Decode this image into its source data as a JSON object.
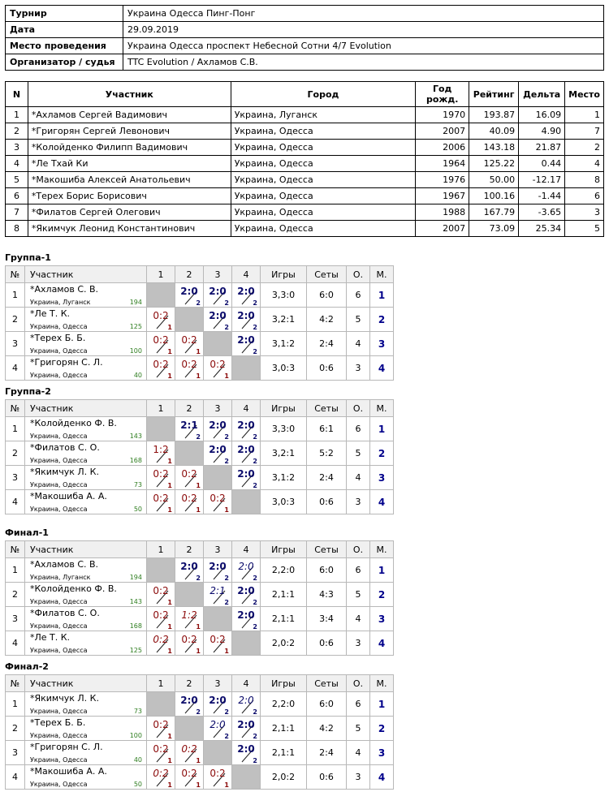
{
  "info": [
    {
      "key": "Турнир",
      "value": "Украина Одесса Пинг-Понг"
    },
    {
      "key": "Дата",
      "value": "29.09.2019"
    },
    {
      "key": "Место проведения",
      "value": "Украина Одесса проспект Небесной Сотни 4/7 Evolution"
    },
    {
      "key": "Организатор / судья",
      "value": "TTC Evolution / Ахламов С.В."
    }
  ],
  "participants": {
    "headers": {
      "n": "N",
      "name": "Участник",
      "city": "Город",
      "year": "Год рожд.",
      "rating": "Рейтинг",
      "delta": "Дельта",
      "place": "Место"
    },
    "rows": [
      {
        "n": "1",
        "name": "*Ахламов Сергей Вадимович",
        "city": "Украина, Луганск",
        "year": "1970",
        "rating": "193.87",
        "delta": "16.09",
        "place": "1"
      },
      {
        "n": "2",
        "name": "*Григорян Сергей Левонович",
        "city": "Украина, Одесса",
        "year": "2007",
        "rating": "40.09",
        "delta": "4.90",
        "place": "7"
      },
      {
        "n": "3",
        "name": "*Колойденко Филипп Вадимович",
        "city": "Украина, Одесса",
        "year": "2006",
        "rating": "143.18",
        "delta": "21.87",
        "place": "2"
      },
      {
        "n": "4",
        "name": "*Ле Тхай Ки",
        "city": "Украина, Одесса",
        "year": "1964",
        "rating": "125.22",
        "delta": "0.44",
        "place": "4"
      },
      {
        "n": "5",
        "name": "*Макошиба Алексей Анатольевич",
        "city": "Украина, Одесса",
        "year": "1976",
        "rating": "50.00",
        "delta": "-12.17",
        "place": "8"
      },
      {
        "n": "6",
        "name": "*Терех Борис Борисович",
        "city": "Украина, Одесса",
        "year": "1967",
        "rating": "100.16",
        "delta": "-1.44",
        "place": "6"
      },
      {
        "n": "7",
        "name": "*Филатов Сергей Олегович",
        "city": "Украина, Одесса",
        "year": "1988",
        "rating": "167.79",
        "delta": "-3.65",
        "place": "3"
      },
      {
        "n": "8",
        "name": "*Якимчук Леонид Константинович",
        "city": "Украина, Одесса",
        "year": "2007",
        "rating": "73.09",
        "delta": "25.34",
        "place": "5"
      }
    ]
  },
  "groupHeaders": {
    "n": "№",
    "player": "Участник",
    "c1": "1",
    "c2": "2",
    "c3": "3",
    "c4": "4",
    "games": "Игры",
    "sets": "Сеты",
    "points": "О.",
    "place": "М."
  },
  "groups": [
    {
      "title": "Группа-1",
      "rows": [
        {
          "n": "1",
          "name": "*Ахламов С. В.",
          "city": "Украина, Луганск",
          "rating": "194",
          "cells": [
            null,
            {
              "s": "2:0",
              "p": "2",
              "w": true,
              "i": false
            },
            {
              "s": "2:0",
              "p": "2",
              "w": true,
              "i": false
            },
            {
              "s": "2:0",
              "p": "2",
              "w": true,
              "i": false
            }
          ],
          "games": "3,3:0",
          "sets": "6:0",
          "points": "6",
          "place": "1"
        },
        {
          "n": "2",
          "name": "*Ле Т. К.",
          "city": "Украина, Одесса",
          "rating": "125",
          "cells": [
            {
              "s": "0:2",
              "p": "1",
              "w": false,
              "i": false
            },
            null,
            {
              "s": "2:0",
              "p": "2",
              "w": true,
              "i": false
            },
            {
              "s": "2:0",
              "p": "2",
              "w": true,
              "i": false
            }
          ],
          "games": "3,2:1",
          "sets": "4:2",
          "points": "5",
          "place": "2"
        },
        {
          "n": "3",
          "name": "*Терех Б. Б.",
          "city": "Украина, Одесса",
          "rating": "100",
          "cells": [
            {
              "s": "0:2",
              "p": "1",
              "w": false,
              "i": false
            },
            {
              "s": "0:2",
              "p": "1",
              "w": false,
              "i": false
            },
            null,
            {
              "s": "2:0",
              "p": "2",
              "w": true,
              "i": false
            }
          ],
          "games": "3,1:2",
          "sets": "2:4",
          "points": "4",
          "place": "3"
        },
        {
          "n": "4",
          "name": "*Григорян С. Л.",
          "city": "Украина, Одесса",
          "rating": "40",
          "cells": [
            {
              "s": "0:2",
              "p": "1",
              "w": false,
              "i": false
            },
            {
              "s": "0:2",
              "p": "1",
              "w": false,
              "i": false
            },
            {
              "s": "0:2",
              "p": "1",
              "w": false,
              "i": false
            },
            null
          ],
          "games": "3,0:3",
          "sets": "0:6",
          "points": "3",
          "place": "4"
        }
      ]
    },
    {
      "title": "Группа-2",
      "rows": [
        {
          "n": "1",
          "name": "*Колойденко Ф. В.",
          "city": "Украина, Одесса",
          "rating": "143",
          "cells": [
            null,
            {
              "s": "2:1",
              "p": "2",
              "w": true,
              "i": false
            },
            {
              "s": "2:0",
              "p": "2",
              "w": true,
              "i": false
            },
            {
              "s": "2:0",
              "p": "2",
              "w": true,
              "i": false
            }
          ],
          "games": "3,3:0",
          "sets": "6:1",
          "points": "6",
          "place": "1"
        },
        {
          "n": "2",
          "name": "*Филатов С. О.",
          "city": "Украина, Одесса",
          "rating": "168",
          "cells": [
            {
              "s": "1:2",
              "p": "1",
              "w": false,
              "i": false
            },
            null,
            {
              "s": "2:0",
              "p": "2",
              "w": true,
              "i": false
            },
            {
              "s": "2:0",
              "p": "2",
              "w": true,
              "i": false
            }
          ],
          "games": "3,2:1",
          "sets": "5:2",
          "points": "5",
          "place": "2"
        },
        {
          "n": "3",
          "name": "*Якимчук Л. К.",
          "city": "Украина, Одесса",
          "rating": "73",
          "cells": [
            {
              "s": "0:2",
              "p": "1",
              "w": false,
              "i": false
            },
            {
              "s": "0:2",
              "p": "1",
              "w": false,
              "i": false
            },
            null,
            {
              "s": "2:0",
              "p": "2",
              "w": true,
              "i": false
            }
          ],
          "games": "3,1:2",
          "sets": "2:4",
          "points": "4",
          "place": "3"
        },
        {
          "n": "4",
          "name": "*Макошиба А. А.",
          "city": "Украина, Одесса",
          "rating": "50",
          "cells": [
            {
              "s": "0:2",
              "p": "1",
              "w": false,
              "i": false
            },
            {
              "s": "0:2",
              "p": "1",
              "w": false,
              "i": false
            },
            {
              "s": "0:2",
              "p": "1",
              "w": false,
              "i": false
            },
            null
          ],
          "games": "3,0:3",
          "sets": "0:6",
          "points": "3",
          "place": "4"
        }
      ]
    },
    {
      "title": "Финал-1",
      "rows": [
        {
          "n": "1",
          "name": "*Ахламов С. В.",
          "city": "Украина, Луганск",
          "rating": "194",
          "cells": [
            null,
            {
              "s": "2:0",
              "p": "2",
              "w": true,
              "i": false
            },
            {
              "s": "2:0",
              "p": "2",
              "w": true,
              "i": false
            },
            {
              "s": "2:0",
              "p": "2",
              "w": true,
              "i": true
            }
          ],
          "games": "2,2:0",
          "sets": "6:0",
          "points": "6",
          "place": "1"
        },
        {
          "n": "2",
          "name": "*Колойденко Ф. В.",
          "city": "Украина, Одесса",
          "rating": "143",
          "cells": [
            {
              "s": "0:2",
              "p": "1",
              "w": false,
              "i": false
            },
            null,
            {
              "s": "2:1",
              "p": "2",
              "w": true,
              "i": true
            },
            {
              "s": "2:0",
              "p": "2",
              "w": true,
              "i": false
            }
          ],
          "games": "2,1:1",
          "sets": "4:3",
          "points": "5",
          "place": "2"
        },
        {
          "n": "3",
          "name": "*Филатов С. О.",
          "city": "Украина, Одесса",
          "rating": "168",
          "cells": [
            {
              "s": "0:2",
              "p": "1",
              "w": false,
              "i": false
            },
            {
              "s": "1:2",
              "p": "1",
              "w": false,
              "i": true
            },
            null,
            {
              "s": "2:0",
              "p": "2",
              "w": true,
              "i": false
            }
          ],
          "games": "2,1:1",
          "sets": "3:4",
          "points": "4",
          "place": "3"
        },
        {
          "n": "4",
          "name": "*Ле Т. К.",
          "city": "Украина, Одесса",
          "rating": "125",
          "cells": [
            {
              "s": "0:2",
              "p": "1",
              "w": false,
              "i": true
            },
            {
              "s": "0:2",
              "p": "1",
              "w": false,
              "i": false
            },
            {
              "s": "0:2",
              "p": "1",
              "w": false,
              "i": false
            },
            null
          ],
          "games": "2,0:2",
          "sets": "0:6",
          "points": "3",
          "place": "4"
        }
      ]
    },
    {
      "title": "Финал-2",
      "rows": [
        {
          "n": "1",
          "name": "*Якимчук Л. К.",
          "city": "Украина, Одесса",
          "rating": "73",
          "cells": [
            null,
            {
              "s": "2:0",
              "p": "2",
              "w": true,
              "i": false
            },
            {
              "s": "2:0",
              "p": "2",
              "w": true,
              "i": false
            },
            {
              "s": "2:0",
              "p": "2",
              "w": true,
              "i": true
            }
          ],
          "games": "2,2:0",
          "sets": "6:0",
          "points": "6",
          "place": "1"
        },
        {
          "n": "2",
          "name": "*Терех Б. Б.",
          "city": "Украина, Одесса",
          "rating": "100",
          "cells": [
            {
              "s": "0:2",
              "p": "1",
              "w": false,
              "i": false
            },
            null,
            {
              "s": "2:0",
              "p": "2",
              "w": true,
              "i": true
            },
            {
              "s": "2:0",
              "p": "2",
              "w": true,
              "i": false
            }
          ],
          "games": "2,1:1",
          "sets": "4:2",
          "points": "5",
          "place": "2"
        },
        {
          "n": "3",
          "name": "*Григорян С. Л.",
          "city": "Украина, Одесса",
          "rating": "40",
          "cells": [
            {
              "s": "0:2",
              "p": "1",
              "w": false,
              "i": false
            },
            {
              "s": "0:2",
              "p": "1",
              "w": false,
              "i": true
            },
            null,
            {
              "s": "2:0",
              "p": "2",
              "w": true,
              "i": false
            }
          ],
          "games": "2,1:1",
          "sets": "2:4",
          "points": "4",
          "place": "3"
        },
        {
          "n": "4",
          "name": "*Макошиба А. А.",
          "city": "Украина, Одесса",
          "rating": "50",
          "cells": [
            {
              "s": "0:2",
              "p": "1",
              "w": false,
              "i": true
            },
            {
              "s": "0:2",
              "p": "1",
              "w": false,
              "i": false
            },
            {
              "s": "0:2",
              "p": "1",
              "w": false,
              "i": false
            },
            null
          ],
          "games": "2,0:2",
          "sets": "0:6",
          "points": "3",
          "place": "4"
        }
      ]
    }
  ]
}
